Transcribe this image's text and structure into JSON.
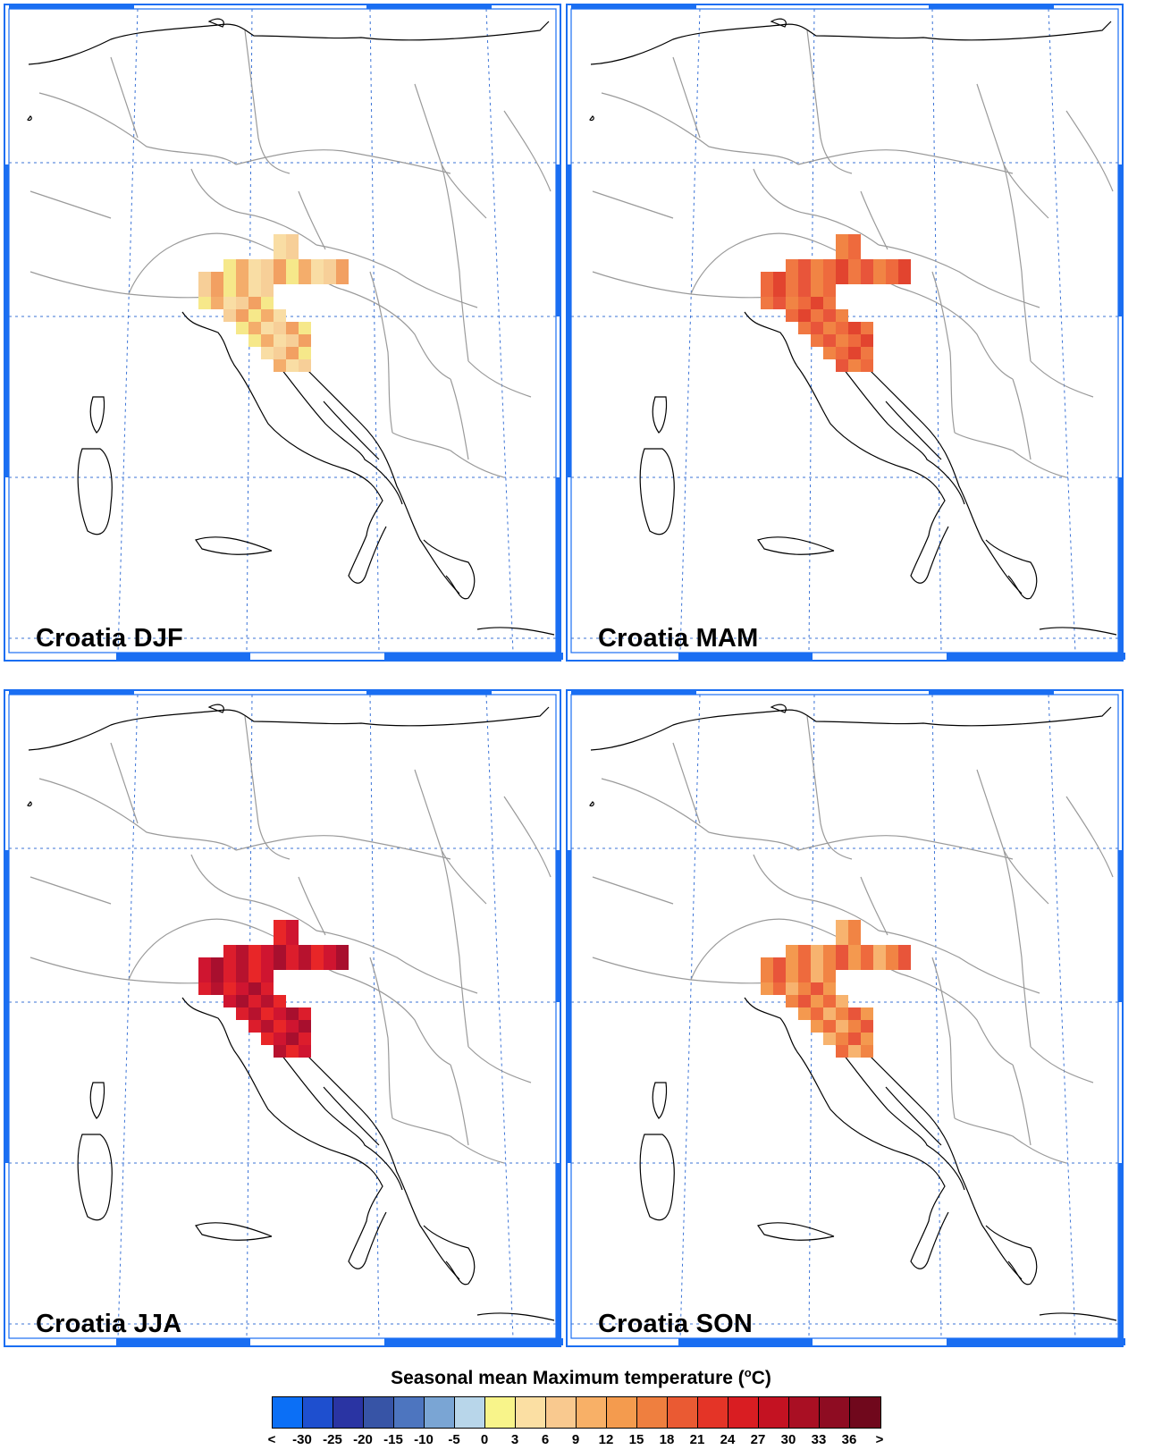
{
  "panels": [
    {
      "title": "Croatia DJF",
      "season": "DJF",
      "cells": [
        "#f9dda4",
        "#f6e88a",
        "#f7cf98",
        "#f4ad6b",
        "#f2a062"
      ]
    },
    {
      "title": "Croatia MAM",
      "season": "MAM",
      "cells": [
        "#f18444",
        "#f07842",
        "#ee6a3d",
        "#e8553a",
        "#e2442f"
      ]
    },
    {
      "title": "Croatia JJA",
      "season": "JJA",
      "cells": [
        "#e82628",
        "#dc1d2c",
        "#cf1530",
        "#b7122e",
        "#a80f2e"
      ]
    },
    {
      "title": "Croatia SON",
      "season": "SON",
      "cells": [
        "#f7b36f",
        "#f4994f",
        "#f18444",
        "#ee6a3d",
        "#e8553a"
      ]
    }
  ],
  "legend": {
    "title": "Seasonal mean Maximum temperature (",
    "title_unit_sup": "o",
    "title_unit": "C)",
    "colors": [
      "#0b6ff6",
      "#1e4fcf",
      "#2a34a3",
      "#3754a6",
      "#4d75bf",
      "#7aa5d4",
      "#b8d6ea",
      "#f8f48a",
      "#fbdfa3",
      "#f9c98f",
      "#f8b067",
      "#f49b4e",
      "#ef7f3f",
      "#ea5a33",
      "#e43427",
      "#d91d22",
      "#c41222",
      "#a90f23",
      "#8e0c22",
      "#70081c"
    ],
    "labels": [
      "<",
      "-30",
      "-25",
      "-20",
      "-15",
      "-10",
      "-5",
      "0",
      "3",
      "6",
      "9",
      "12",
      "15",
      "18",
      "21",
      "24",
      "27",
      "30",
      "33",
      "36",
      ">"
    ]
  },
  "colors": {
    "frame": "#1a6ef2",
    "grid": "#3b73d6",
    "coast": "#000000",
    "border": "#9a9a9a"
  }
}
